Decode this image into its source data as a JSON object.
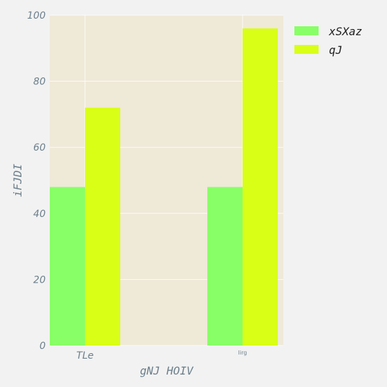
{
  "chart_data": {
    "type": "bar",
    "categories": [
      "TLe",
      "lirg"
    ],
    "series": [
      {
        "name": "xSXaz",
        "values": [
          48,
          48
        ],
        "color": "#88ff66"
      },
      {
        "name": "qJ",
        "values": [
          72,
          96
        ],
        "color": "#d9ff17"
      }
    ],
    "xlabel": "gNJ HOIV",
    "ylabel": "iFJDI",
    "ylim": [
      0,
      100
    ],
    "yticks": [
      0,
      20,
      40,
      60,
      80,
      100
    ],
    "grid": true,
    "legend_position": "top-right",
    "plot_background": "#efe9d8",
    "figure_background": "#f2f2f2",
    "text_color": "#6c7f8c"
  }
}
